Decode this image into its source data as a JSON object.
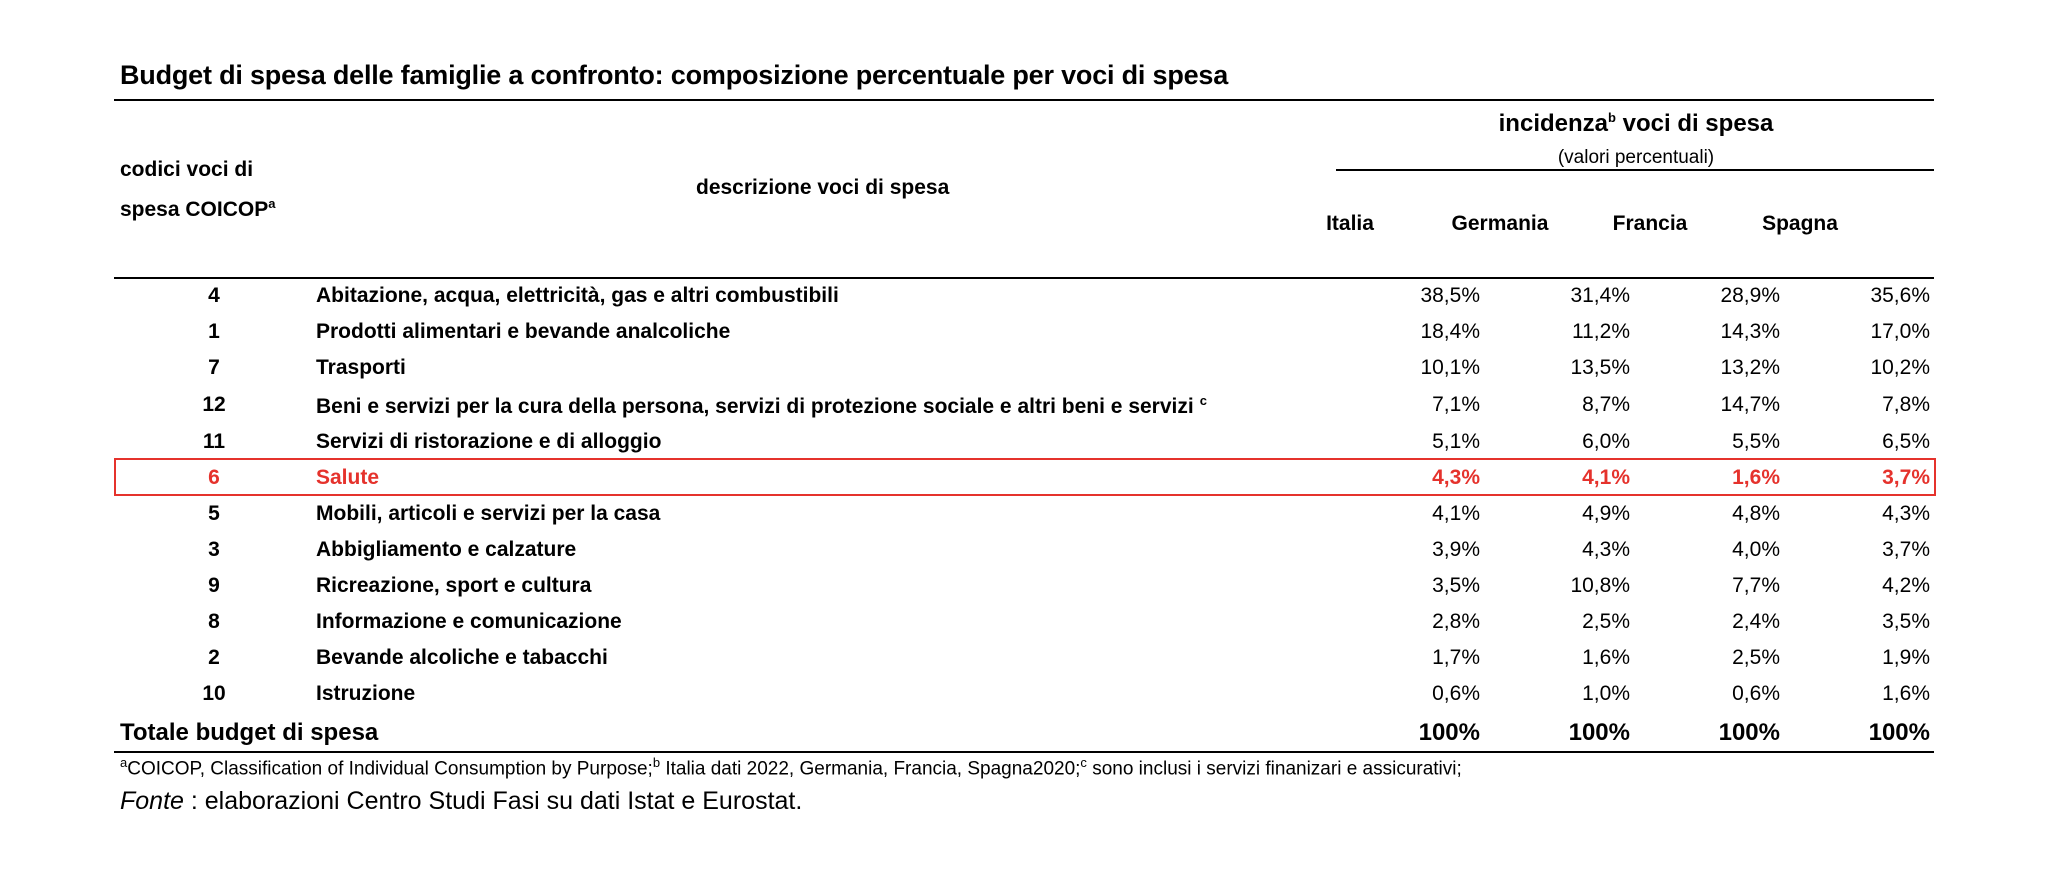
{
  "title": "Budget di spesa delle famiglie a confronto:  composizione percentuale per voci di spesa",
  "header": {
    "codes_line1": "codici voci di",
    "codes_line2": "spesa COICOP",
    "codes_sup": "a",
    "description": "descrizione voci di spesa",
    "incidence_pre": "incidenza",
    "incidence_sup": "b",
    "incidence_post": " voci di spesa",
    "incidence_sub": "(valori percentuali)",
    "countries": [
      "Italia",
      "Germania",
      "Francia",
      "Spagna"
    ]
  },
  "rows": [
    {
      "code": "4",
      "desc": "Abitazione, acqua, elettricità, gas e altri combustibili",
      "sup": "",
      "values": [
        "38,5%",
        "31,4%",
        "28,9%",
        "35,6%"
      ]
    },
    {
      "code": "1",
      "desc": "Prodotti alimentari e bevande analcoliche",
      "sup": "",
      "values": [
        "18,4%",
        "11,2%",
        "14,3%",
        "17,0%"
      ]
    },
    {
      "code": "7",
      "desc": "Trasporti",
      "sup": "",
      "values": [
        "10,1%",
        "13,5%",
        "13,2%",
        "10,2%"
      ]
    },
    {
      "code": "12",
      "desc": "Beni e servizi per la cura della persona, servizi di protezione sociale e altri beni e servizi",
      "sup": "c",
      "values": [
        "7,1%",
        "8,7%",
        "14,7%",
        "7,8%"
      ]
    },
    {
      "code": "11",
      "desc": "Servizi di ristorazione e di alloggio",
      "sup": "",
      "values": [
        "5,1%",
        "6,0%",
        "5,5%",
        "6,5%"
      ]
    },
    {
      "code": "6",
      "desc": "Salute",
      "sup": "",
      "values": [
        "4,3%",
        "4,1%",
        "1,6%",
        "3,7%"
      ]
    },
    {
      "code": "5",
      "desc": "Mobili, articoli e servizi per la casa",
      "sup": "",
      "values": [
        "4,1%",
        "4,9%",
        "4,8%",
        "4,3%"
      ]
    },
    {
      "code": "3",
      "desc": "Abbigliamento e calzature",
      "sup": "",
      "values": [
        "3,9%",
        "4,3%",
        "4,0%",
        "3,7%"
      ]
    },
    {
      "code": "9",
      "desc": "Ricreazione, sport e cultura",
      "sup": "",
      "values": [
        "3,5%",
        "10,8%",
        "7,7%",
        "4,2%"
      ]
    },
    {
      "code": "8",
      "desc": "Informazione e comunicazione",
      "sup": "",
      "values": [
        "2,8%",
        "2,5%",
        "2,4%",
        "3,5%"
      ]
    },
    {
      "code": "2",
      "desc": "Bevande alcoliche e tabacchi",
      "sup": "",
      "values": [
        "1,7%",
        "1,6%",
        "2,5%",
        "1,9%"
      ]
    },
    {
      "code": "10",
      "desc": "Istruzione",
      "sup": "",
      "values": [
        "0,6%",
        "1,0%",
        "0,6%",
        "1,6%"
      ]
    }
  ],
  "total": {
    "label": "Totale  budget di spesa",
    "values": [
      "100%",
      "100%",
      "100%",
      "100%"
    ]
  },
  "footnote": {
    "a_sup": "a",
    "a_text": "COICOP, Classification of Individual Consumption by Purpose;",
    "b_sup": "b",
    "b_text": " Italia dati 2022, Germania, Francia, Spagna2020;",
    "c_sup": "c",
    "c_text": " sono inclusi i servizi finanizari e assicurativi;"
  },
  "source": {
    "label": "Fonte",
    "text": " : elaborazioni Centro Studi Fasi su dati Istat e Eurostat."
  },
  "colors": {
    "highlight": "#e5322c",
    "text": "#000000"
  }
}
